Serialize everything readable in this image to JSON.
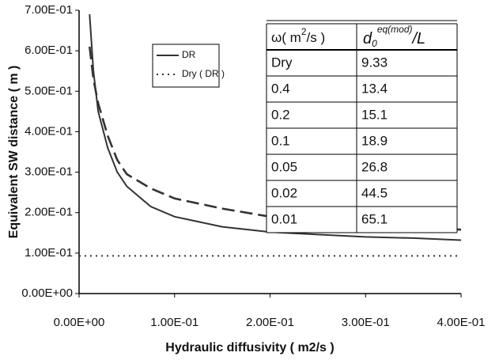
{
  "chart_data": {
    "type": "line",
    "xlabel": "Hydraulic diffusivity ( m2/s )",
    "ylabel": "Equivalent SW distance ( m )",
    "xlim": [
      0,
      0.4
    ],
    "ylim": [
      0,
      0.7
    ],
    "xticks": [
      {
        "value": 0,
        "label": "0.00E+00"
      },
      {
        "value": 0.1,
        "label": "1.00E-01"
      },
      {
        "value": 0.2,
        "label": "2.00E-01"
      },
      {
        "value": 0.3,
        "label": "3.00E-01"
      },
      {
        "value": 0.4,
        "label": "4.00E-01"
      }
    ],
    "yticks": [
      {
        "value": 0,
        "label": "0.00E+00"
      },
      {
        "value": 0.1,
        "label": "1.00E-01"
      },
      {
        "value": 0.2,
        "label": "2.00E-01"
      },
      {
        "value": 0.3,
        "label": "3.00E-01"
      },
      {
        "value": 0.4,
        "label": "4.00E-01"
      },
      {
        "value": 0.5,
        "label": "5.00E-01"
      },
      {
        "value": 0.6,
        "label": "6.00E-01"
      },
      {
        "value": 0.7,
        "label": "7.00E-01"
      }
    ],
    "series": [
      {
        "name": "DR",
        "color": "#333333",
        "style": "solid",
        "x": [
          0.011,
          0.015,
          0.02,
          0.03,
          0.04,
          0.05,
          0.075,
          0.1,
          0.15,
          0.2,
          0.25,
          0.3,
          0.35,
          0.4
        ],
        "values": [
          0.69,
          0.55,
          0.45,
          0.36,
          0.3,
          0.265,
          0.215,
          0.19,
          0.165,
          0.152,
          0.146,
          0.14,
          0.137,
          0.132
        ]
      },
      {
        "color": "#333333",
        "style": "dashed",
        "x": [
          0.011,
          0.015,
          0.02,
          0.03,
          0.04,
          0.05,
          0.075,
          0.1,
          0.15,
          0.2,
          0.25,
          0.3,
          0.35,
          0.4
        ],
        "values": [
          0.61,
          0.53,
          0.47,
          0.39,
          0.33,
          0.295,
          0.26,
          0.235,
          0.21,
          0.19,
          0.18,
          0.172,
          0.165,
          0.158
        ]
      },
      {
        "name": "Dry ( DR )",
        "color": "#333333",
        "style": "dotted",
        "x": [
          0,
          0.4
        ],
        "values": [
          0.093,
          0.093
        ]
      }
    ],
    "table": {
      "header": [
        [
          "ω( m",
          "2",
          "/s )"
        ],
        [
          "d",
          "0",
          "eq(mod)",
          "/L"
        ]
      ],
      "rows": [
        [
          "Dry",
          "9.33"
        ],
        [
          "0.4",
          "13.4"
        ],
        [
          "0.2",
          "15.1"
        ],
        [
          "0.1",
          "18.9"
        ],
        [
          "0.05",
          "26.8"
        ],
        [
          "0.02",
          "44.5"
        ],
        [
          "0.01",
          "65.1"
        ]
      ]
    }
  }
}
